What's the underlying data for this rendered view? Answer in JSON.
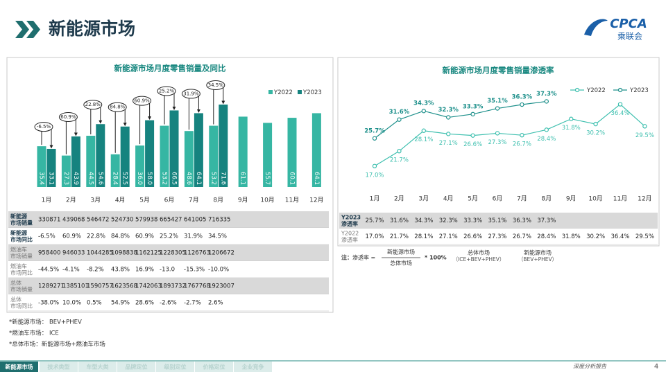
{
  "header": {
    "title": "新能源市场",
    "logo": "CPCA",
    "logo_sub": "乘联会"
  },
  "chart_data": [
    {
      "type": "bar",
      "title": "新能源市场月度零售销量及同比",
      "categories": [
        "1月",
        "2月",
        "3月",
        "4月",
        "5月",
        "6月",
        "7月",
        "8月",
        "9月",
        "10月",
        "11月",
        "12月"
      ],
      "series": [
        {
          "name": "Y2022",
          "color": "#36b6a3",
          "values": [
            35.4,
            27.3,
            44.5,
            28.4,
            36.0,
            53.2,
            48.6,
            53.2,
            61.1,
            55.7,
            60.1,
            64.1
          ],
          "value_labels": [
            "35.4",
            "27.3",
            "44.5",
            "28.4",
            "36.0",
            "53.2",
            "48.6",
            "53.2",
            "61.1",
            "55.7",
            "60.1",
            "64.1"
          ]
        },
        {
          "name": "Y2023",
          "color": "#16837f",
          "values": [
            33.1,
            43.9,
            54.6,
            52.5,
            58.0,
            66.5,
            64.1,
            71.6,
            null,
            null,
            null,
            null
          ],
          "value_labels": [
            "33.1",
            "43.9",
            "54.6",
            "52.5",
            "58.0",
            "66.5",
            "64.1",
            "71.6",
            null,
            null,
            null,
            null
          ]
        }
      ],
      "annotations": [
        "-6.5%",
        "60.9%",
        "22.8%",
        "84.8%",
        "60.9%",
        "25.2%",
        "31.9%",
        "34.5%"
      ],
      "ylim": [
        0,
        80
      ],
      "legend": "top-right"
    },
    {
      "type": "line",
      "title": "新能源市场月度零售销量渗透率",
      "categories": [
        "1月",
        "2月",
        "3月",
        "4月",
        "5月",
        "6月",
        "7月",
        "8月",
        "9月",
        "10月",
        "11月",
        "12月"
      ],
      "series": [
        {
          "name": "Y2022",
          "color": "#3cbfae",
          "values": [
            17.0,
            21.7,
            28.1,
            27.1,
            26.6,
            27.3,
            26.7,
            28.4,
            31.8,
            30.2,
            36.4,
            29.5
          ],
          "value_labels": [
            "17.0%",
            "21.7%",
            "28.1%",
            "27.1%",
            "26.6%",
            "27.3%",
            "26.7%",
            "28.4%",
            "31.8%",
            "30.2%",
            "36.4%",
            "29.5%"
          ]
        },
        {
          "name": "Y2023",
          "color": "#1c8f8a",
          "values": [
            25.7,
            31.6,
            34.3,
            32.3,
            33.3,
            35.1,
            36.3,
            37.3,
            null,
            null,
            null,
            null
          ],
          "value_labels": [
            "25.7%",
            "31.6%",
            "34.3%",
            "32.3%",
            "33.3%",
            "35.1%",
            "36.3%",
            "37.3%",
            null,
            null,
            null,
            null
          ]
        }
      ],
      "ylim": [
        10,
        40
      ],
      "legend": "top-right"
    }
  ],
  "tables": [
    {
      "rows": [
        {
          "label": [
            "新能源",
            "市场销量"
          ],
          "values": [
            "330871",
            "439068",
            "546472",
            "524730",
            "579938",
            "665427",
            "641005",
            "716335"
          ]
        },
        {
          "label": [
            "新能源",
            "市场同比"
          ],
          "values": [
            "-6.5%",
            "60.9%",
            "22.8%",
            "84.8%",
            "60.9%",
            "25.2%",
            "31.9%",
            "34.5%"
          ]
        },
        {
          "label": [
            "燃油车",
            "市场销量"
          ],
          "values": [
            "958400",
            "946033",
            "1044285",
            "1098838",
            "1162125",
            "1228305",
            "1126763",
            "1206672"
          ]
        },
        {
          "label": [
            "燃油车",
            "市场同比"
          ],
          "values": [
            "-44.5%",
            "-4.1%",
            "-8.2%",
            "43.8%",
            "16.9%",
            "-13.0",
            "-15.3%",
            "-10.0%"
          ]
        },
        {
          "label": [
            "总体",
            "市场销量"
          ],
          "values": [
            "1289271",
            "1385101",
            "1590757",
            "1623568",
            "1742063",
            "1893732",
            "1767768",
            "1923007"
          ]
        },
        {
          "label": [
            "总体",
            "市场同比"
          ],
          "values": [
            "-38.0%",
            "10.0%",
            "0.5%",
            "54.9%",
            "28.6%",
            "-2.6%",
            "-2.7%",
            "2.6%"
          ]
        }
      ]
    },
    {
      "rows": [
        {
          "label": [
            "Y2023",
            "渗透率"
          ],
          "values": [
            "25.7%",
            "31.6%",
            "34.3%",
            "32.3%",
            "33.3%",
            "35.1%",
            "36.3%",
            "37.3%"
          ]
        },
        {
          "label": [
            "Y2022",
            "渗透率"
          ],
          "values": [
            "17.0%",
            "21.7%",
            "28.1%",
            "27.1%",
            "26.6%",
            "27.3%",
            "26.7%",
            "28.4%",
            "31.8%",
            "30.2%",
            "36.4%",
            "29.5%"
          ]
        }
      ]
    }
  ],
  "formula": {
    "note": "注：",
    "lhs": "渗透率 =",
    "numerator": "新能源市场",
    "denominator": "总体市场",
    "factor": "* 100%",
    "defs": [
      {
        "term": "总体市场",
        "expansion": "（ICE+BEV+PHEV）"
      },
      {
        "term": "新能源市场",
        "expansion": "（BEV+PHEV）"
      }
    ]
  },
  "notes": [
    "*新能源市场：  BEV+PHEV",
    "*燃油车市场：  ICE",
    "*总体市场：新能源市场+燃油车市场"
  ],
  "nav": {
    "tabs": [
      "新能源市场",
      "技术类型",
      "车型大类",
      "品牌定位",
      "级别定位",
      "价格定位",
      "企业竞争"
    ],
    "active": 0,
    "report": "深度分析报告",
    "page": 4
  }
}
